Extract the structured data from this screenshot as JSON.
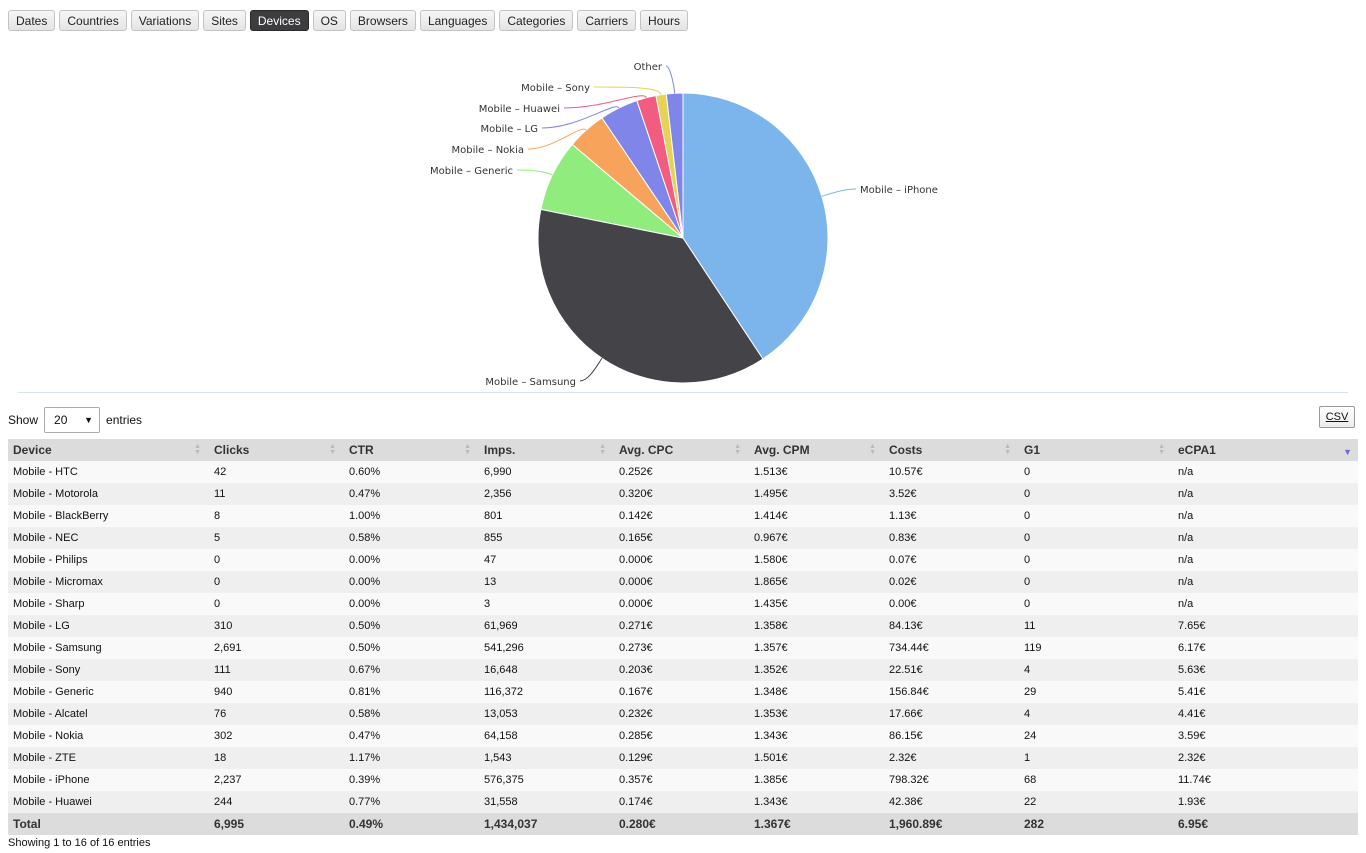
{
  "tabs": [
    "Dates",
    "Countries",
    "Variations",
    "Sites",
    "Devices",
    "OS",
    "Browsers",
    "Languages",
    "Categories",
    "Carriers",
    "Hours"
  ],
  "active_tab": "Devices",
  "chart_data": {
    "type": "pie",
    "slices": [
      {
        "label": "Mobile – iPhone",
        "value": 798.32,
        "color": "#7cb5ec"
      },
      {
        "label": "Mobile – Samsung",
        "value": 734.44,
        "color": "#434348"
      },
      {
        "label": "Mobile – Generic",
        "value": 156.84,
        "color": "#90ed7d"
      },
      {
        "label": "Mobile – Nokia",
        "value": 86.15,
        "color": "#f7a35c"
      },
      {
        "label": "Mobile – LG",
        "value": 84.13,
        "color": "#8085e9"
      },
      {
        "label": "Mobile – Huawei",
        "value": 42.38,
        "color": "#f15c80"
      },
      {
        "label": "Mobile – Sony",
        "value": 22.51,
        "color": "#e4d354"
      },
      {
        "label": "Other",
        "value": 36.12,
        "color": "#8085e8"
      }
    ]
  },
  "controls": {
    "show_label": "Show",
    "entries_value": "20",
    "entries_label": "entries",
    "csv_label": "CSV"
  },
  "table": {
    "columns": [
      "Device",
      "Clicks",
      "CTR",
      "Imps.",
      "Avg. CPC",
      "Avg. CPM",
      "Costs",
      "G1",
      "eCPA1"
    ],
    "rows": [
      [
        "Mobile - HTC",
        "42",
        "0.60%",
        "6,990",
        "0.252€",
        "1.513€",
        "10.57€",
        "0",
        "n/a"
      ],
      [
        "Mobile - Motorola",
        "11",
        "0.47%",
        "2,356",
        "0.320€",
        "1.495€",
        "3.52€",
        "0",
        "n/a"
      ],
      [
        "Mobile - BlackBerry",
        "8",
        "1.00%",
        "801",
        "0.142€",
        "1.414€",
        "1.13€",
        "0",
        "n/a"
      ],
      [
        "Mobile - NEC",
        "5",
        "0.58%",
        "855",
        "0.165€",
        "0.967€",
        "0.83€",
        "0",
        "n/a"
      ],
      [
        "Mobile - Philips",
        "0",
        "0.00%",
        "47",
        "0.000€",
        "1.580€",
        "0.07€",
        "0",
        "n/a"
      ],
      [
        "Mobile - Micromax",
        "0",
        "0.00%",
        "13",
        "0.000€",
        "1.865€",
        "0.02€",
        "0",
        "n/a"
      ],
      [
        "Mobile - Sharp",
        "0",
        "0.00%",
        "3",
        "0.000€",
        "1.435€",
        "0.00€",
        "0",
        "n/a"
      ],
      [
        "Mobile - LG",
        "310",
        "0.50%",
        "61,969",
        "0.271€",
        "1.358€",
        "84.13€",
        "11",
        "7.65€"
      ],
      [
        "Mobile - Samsung",
        "2,691",
        "0.50%",
        "541,296",
        "0.273€",
        "1.357€",
        "734.44€",
        "119",
        "6.17€"
      ],
      [
        "Mobile - Sony",
        "111",
        "0.67%",
        "16,648",
        "0.203€",
        "1.352€",
        "22.51€",
        "4",
        "5.63€"
      ],
      [
        "Mobile - Generic",
        "940",
        "0.81%",
        "116,372",
        "0.167€",
        "1.348€",
        "156.84€",
        "29",
        "5.41€"
      ],
      [
        "Mobile - Alcatel",
        "76",
        "0.58%",
        "13,053",
        "0.232€",
        "1.353€",
        "17.66€",
        "4",
        "4.41€"
      ],
      [
        "Mobile - Nokia",
        "302",
        "0.47%",
        "64,158",
        "0.285€",
        "1.343€",
        "86.15€",
        "24",
        "3.59€"
      ],
      [
        "Mobile - ZTE",
        "18",
        "1.17%",
        "1,543",
        "0.129€",
        "1.501€",
        "2.32€",
        "1",
        "2.32€"
      ],
      [
        "Mobile - iPhone",
        "2,237",
        "0.39%",
        "576,375",
        "0.357€",
        "1.385€",
        "798.32€",
        "68",
        "11.74€"
      ],
      [
        "Mobile - Huawei",
        "244",
        "0.77%",
        "31,558",
        "0.174€",
        "1.343€",
        "42.38€",
        "22",
        "1.93€"
      ]
    ],
    "total": [
      "Total",
      "6,995",
      "0.49%",
      "1,434,037",
      "0.280€",
      "1.367€",
      "1,960.89€",
      "282",
      "6.95€"
    ]
  },
  "info": "Showing 1 to 16 of 16 entries"
}
